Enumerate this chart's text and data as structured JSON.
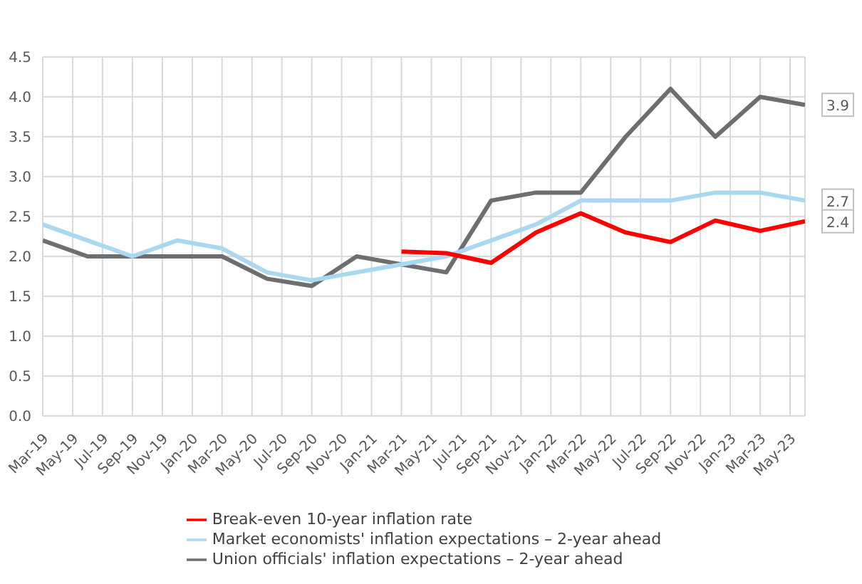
{
  "chart_data": {
    "type": "line",
    "categories": [
      "Mar-19",
      null,
      "May-19",
      null,
      "Jul-19",
      null,
      "Sep-19",
      null,
      "Nov-19",
      null,
      "Jan-20",
      null,
      "Mar-20",
      null,
      "May-20",
      null,
      "Jul-20",
      null,
      "Sep-20",
      null,
      "Nov-20",
      null,
      "Jan-21",
      null,
      "Mar-21",
      null,
      "May-21",
      null,
      "Jul-21",
      null,
      "Sep-21",
      null,
      "Nov-21",
      null,
      "Jan-22",
      null,
      "Mar-22",
      null,
      "May-22",
      null,
      "Jul-22",
      null,
      "Sep-22",
      null,
      "Nov-22",
      null,
      "Jan-23",
      null,
      "Mar-23",
      null,
      "May-23",
      null
    ],
    "series": [
      {
        "name": "Union officials' inflation expectations – 2-year ahead",
        "color": "#6d6e71",
        "values": [
          2.2,
          null,
          null,
          2.0,
          null,
          null,
          2.0,
          null,
          null,
          2.0,
          null,
          null,
          2.0,
          null,
          null,
          1.72,
          null,
          null,
          1.63,
          null,
          null,
          2.0,
          null,
          null,
          1.9,
          null,
          null,
          1.8,
          null,
          null,
          2.7,
          null,
          null,
          2.8,
          null,
          null,
          2.8,
          null,
          null,
          3.5,
          null,
          null,
          4.1,
          null,
          null,
          3.5,
          null,
          null,
          4.0,
          null,
          null,
          3.9
        ],
        "value_labels": [
          null,
          null,
          null,
          null,
          null,
          null,
          null,
          null,
          null,
          null,
          null,
          null,
          null,
          null,
          null,
          null,
          null,
          null,
          null,
          null,
          null,
          null,
          null,
          null,
          null,
          null,
          null,
          null,
          null,
          null,
          null,
          null,
          null,
          null,
          null,
          null,
          null,
          null,
          null,
          null,
          null,
          null,
          null,
          null,
          null,
          null,
          null,
          null,
          null,
          null,
          null,
          "3.9"
        ]
      },
      {
        "name": "Market economists' inflation expectations – 2-year ahead",
        "color": "#a9d8f0",
        "values": [
          2.4,
          null,
          null,
          2.2,
          null,
          null,
          2.0,
          null,
          null,
          2.2,
          null,
          null,
          2.1,
          null,
          null,
          1.8,
          null,
          null,
          1.7,
          null,
          null,
          1.8,
          null,
          null,
          1.9,
          null,
          null,
          2.0,
          null,
          null,
          2.2,
          null,
          null,
          2.4,
          null,
          null,
          2.7,
          null,
          null,
          2.7,
          null,
          null,
          2.7,
          null,
          null,
          2.8,
          null,
          null,
          2.8,
          null,
          null,
          2.7
        ],
        "value_labels": [
          null,
          null,
          null,
          null,
          null,
          null,
          null,
          null,
          null,
          null,
          null,
          null,
          null,
          null,
          null,
          null,
          null,
          null,
          null,
          null,
          null,
          null,
          null,
          null,
          null,
          null,
          null,
          null,
          null,
          null,
          null,
          null,
          null,
          null,
          null,
          null,
          null,
          null,
          null,
          null,
          null,
          null,
          null,
          null,
          null,
          null,
          null,
          null,
          null,
          null,
          null,
          "2.7"
        ]
      },
      {
        "name": "Break-even 10-year inflation rate",
        "color": "#ff0000",
        "values": [
          null,
          null,
          null,
          null,
          null,
          null,
          null,
          null,
          null,
          null,
          null,
          null,
          null,
          null,
          null,
          null,
          null,
          null,
          null,
          null,
          null,
          null,
          null,
          null,
          2.06,
          null,
          null,
          2.04,
          null,
          null,
          1.92,
          null,
          null,
          2.3,
          null,
          null,
          2.54,
          null,
          null,
          2.3,
          null,
          null,
          2.18,
          null,
          null,
          2.45,
          null,
          null,
          2.32,
          null,
          null,
          2.44
        ],
        "value_labels": [
          null,
          null,
          null,
          null,
          null,
          null,
          null,
          null,
          null,
          null,
          null,
          null,
          null,
          null,
          null,
          null,
          null,
          null,
          null,
          null,
          null,
          null,
          null,
          null,
          null,
          null,
          null,
          null,
          null,
          null,
          null,
          null,
          null,
          null,
          null,
          null,
          null,
          null,
          null,
          null,
          null,
          null,
          null,
          null,
          null,
          null,
          null,
          null,
          null,
          null,
          null,
          "2.4"
        ]
      }
    ],
    "ylim": [
      0,
      4.5
    ],
    "yticks": [
      "0.0",
      "0.5",
      "1.0",
      "1.5",
      "2.0",
      "2.5",
      "3.0",
      "3.5",
      "4.0",
      "4.5"
    ],
    "grid": true,
    "legend": "bottom",
    "marker": "none",
    "line_style": "solid"
  }
}
